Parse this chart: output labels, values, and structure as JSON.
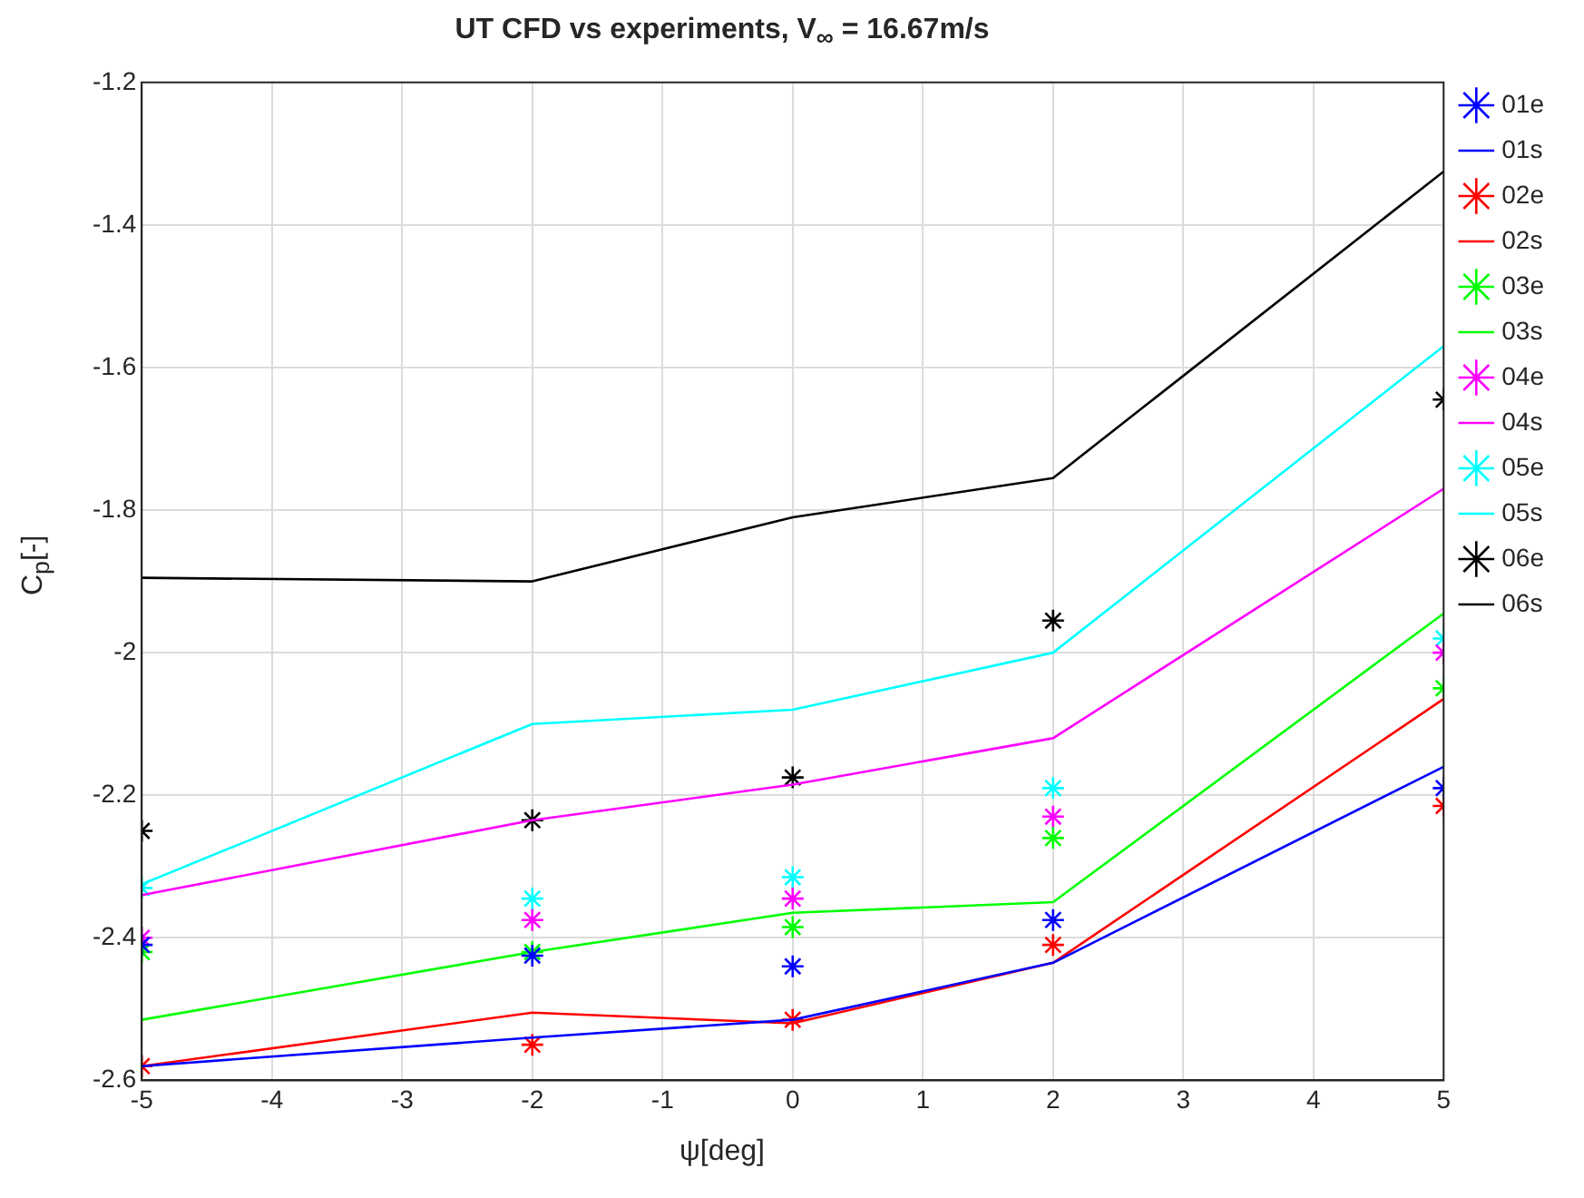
{
  "chart_data": {
    "type": "line",
    "title": "UT CFD vs experiments, V$_{∞}$ = 16.67m/s",
    "xlabel": "ψ[deg]",
    "ylabel": "C$_{p}$[-]",
    "x": [
      -5,
      -2,
      0,
      2,
      5
    ],
    "series": [
      {
        "name": "01e",
        "type": "scatter",
        "marker": "cross",
        "color": "#0000ff",
        "values": [
          -2.41,
          -2.425,
          -2.44,
          -2.375,
          -2.19
        ]
      },
      {
        "name": "01s",
        "type": "line",
        "marker": "none",
        "color": "#0000ff",
        "values": [
          -2.58,
          -2.54,
          -2.515,
          -2.435,
          -2.16
        ]
      },
      {
        "name": "02e",
        "type": "scatter",
        "marker": "cross",
        "color": "#ff0000",
        "values": [
          -2.58,
          -2.55,
          -2.515,
          -2.41,
          -2.215
        ]
      },
      {
        "name": "02s",
        "type": "line",
        "marker": "none",
        "color": "#ff0000",
        "values": [
          -2.58,
          -2.505,
          -2.52,
          -2.435,
          -2.065
        ]
      },
      {
        "name": "03e",
        "type": "scatter",
        "marker": "cross",
        "color": "#00ff00",
        "values": [
          -2.42,
          -2.42,
          -2.385,
          -2.26,
          -2.05
        ]
      },
      {
        "name": "03s",
        "type": "line",
        "marker": "none",
        "color": "#00ff00",
        "values": [
          -2.515,
          -2.42,
          -2.365,
          -2.35,
          -1.945
        ]
      },
      {
        "name": "04e",
        "type": "scatter",
        "marker": "cross",
        "color": "#ff00ff",
        "values": [
          -2.4,
          -2.375,
          -2.345,
          -2.23,
          -2.0
        ]
      },
      {
        "name": "04s",
        "type": "line",
        "marker": "none",
        "color": "#ff00ff",
        "values": [
          -2.34,
          -2.235,
          -2.185,
          -2.12,
          -1.77
        ]
      },
      {
        "name": "05e",
        "type": "scatter",
        "marker": "cross",
        "color": "#00ffff",
        "values": [
          -2.33,
          -2.345,
          -2.315,
          -2.19,
          -1.98
        ]
      },
      {
        "name": "05s",
        "type": "line",
        "marker": "none",
        "color": "#00ffff",
        "values": [
          -2.325,
          -2.1,
          -2.08,
          -2.0,
          -1.57
        ]
      },
      {
        "name": "06e",
        "type": "scatter",
        "marker": "cross",
        "color": "#000000",
        "values": [
          -2.25,
          -2.235,
          -2.175,
          -1.955,
          -1.645
        ]
      },
      {
        "name": "06s",
        "type": "line",
        "marker": "none",
        "color": "#000000",
        "values": [
          -1.895,
          -1.9,
          -1.81,
          -1.755,
          -1.325
        ]
      }
    ],
    "xlim": [
      -5,
      5
    ],
    "xticks": [
      -5,
      -4,
      -3,
      -2,
      -1,
      0,
      1,
      2,
      3,
      4,
      5
    ],
    "ylim": [
      -2.6,
      -1.2
    ],
    "yticks": [
      -2.6,
      -2.4,
      -2.2,
      -2,
      -1.8,
      -1.6,
      -1.4,
      -1.2
    ],
    "grid": true,
    "legend": "right"
  }
}
